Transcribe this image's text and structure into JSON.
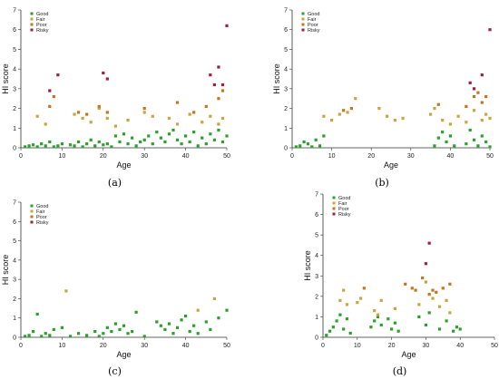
{
  "colors": {
    "Good": "#2ca02c",
    "Fair": "#c8a540",
    "Poor": "#c8741e",
    "Risky": "#a0203a"
  },
  "chart_data": [
    {
      "label": "(a)",
      "type": "scatter",
      "xlabel": "Age",
      "ylabel": "HI score",
      "xlim": [
        0,
        50
      ],
      "ylim": [
        0,
        7
      ],
      "xticks": [
        "0",
        "10",
        "20",
        "30",
        "40",
        "50"
      ],
      "yticks": [
        "0",
        "1",
        "2",
        "3",
        "4",
        "5",
        "6",
        "7"
      ],
      "legend": [
        "Good",
        "Fair",
        "Poor",
        "Risky"
      ],
      "legend_position": "top-left",
      "series": [
        {
          "name": "Good",
          "points": [
            [
              1,
              0.05
            ],
            [
              2,
              0.1
            ],
            [
              3,
              0.15
            ],
            [
              4,
              0.05
            ],
            [
              5,
              0.2
            ],
            [
              6,
              0.1
            ],
            [
              7,
              0.3
            ],
            [
              8,
              0.05
            ],
            [
              9,
              0.1
            ],
            [
              10,
              0.2
            ],
            [
              12,
              0.15
            ],
            [
              13,
              0.1
            ],
            [
              14,
              0.3
            ],
            [
              15,
              0.05
            ],
            [
              16,
              0.2
            ],
            [
              17,
              0.4
            ],
            [
              18,
              0.1
            ],
            [
              19,
              0.3
            ],
            [
              20,
              0.15
            ],
            [
              21,
              0.2
            ],
            [
              22,
              0.05
            ],
            [
              23,
              0.6
            ],
            [
              24,
              0.3
            ],
            [
              25,
              0.7
            ],
            [
              26,
              0.2
            ],
            [
              27,
              0.5
            ],
            [
              28,
              0.1
            ],
            [
              29,
              0.3
            ],
            [
              30,
              0.4
            ],
            [
              31,
              0.6
            ],
            [
              32,
              0.2
            ],
            [
              33,
              0.8
            ],
            [
              34,
              0.5
            ],
            [
              35,
              0.3
            ],
            [
              36,
              0.7
            ],
            [
              37,
              0.9
            ],
            [
              38,
              0.4
            ],
            [
              39,
              0.2
            ],
            [
              40,
              0.6
            ],
            [
              41,
              0.3
            ],
            [
              42,
              0.8
            ],
            [
              43,
              0.1
            ],
            [
              44,
              0.5
            ],
            [
              45,
              0.2
            ],
            [
              46,
              0.7
            ],
            [
              47,
              0.4
            ],
            [
              48,
              0.9
            ],
            [
              49,
              0.3
            ],
            [
              50,
              0.6
            ]
          ]
        },
        {
          "name": "Fair",
          "points": [
            [
              4,
              1.6
            ],
            [
              6,
              1.2
            ],
            [
              13,
              1.7
            ],
            [
              15,
              1.5
            ],
            [
              17,
              1.3
            ],
            [
              19,
              2.0
            ],
            [
              21,
              1.5
            ],
            [
              23,
              1.1
            ],
            [
              26,
              1.4
            ],
            [
              30,
              1.8
            ],
            [
              32,
              1.6
            ],
            [
              36,
              1.5
            ],
            [
              38,
              1.2
            ],
            [
              41,
              1.7
            ],
            [
              44,
              1.3
            ],
            [
              46,
              1.6
            ],
            [
              48,
              1.2
            ],
            [
              49,
              1.5
            ]
          ]
        },
        {
          "name": "Poor",
          "points": [
            [
              7,
              2.1
            ],
            [
              8,
              2.6
            ],
            [
              14,
              1.8
            ],
            [
              16,
              1.7
            ],
            [
              19,
              2.1
            ],
            [
              21,
              1.8
            ],
            [
              30,
              2.0
            ],
            [
              38,
              2.3
            ],
            [
              42,
              1.8
            ],
            [
              45,
              2.1
            ],
            [
              48,
              2.5
            ],
            [
              49,
              2.9
            ]
          ]
        },
        {
          "name": "Risky",
          "points": [
            [
              7,
              2.9
            ],
            [
              9,
              3.7
            ],
            [
              20,
              3.8
            ],
            [
              21,
              3.5
            ],
            [
              46,
              3.7
            ],
            [
              47,
              3.2
            ],
            [
              48,
              4.1
            ],
            [
              49,
              3.2
            ],
            [
              50,
              6.2
            ]
          ]
        }
      ]
    },
    {
      "label": "(b)",
      "type": "scatter",
      "xlabel": "Age",
      "ylabel": "HI score",
      "xlim": [
        0,
        50
      ],
      "ylim": [
        0,
        7
      ],
      "xticks": [
        "0",
        "10",
        "20",
        "30",
        "40",
        "50"
      ],
      "yticks": [
        "0",
        "1",
        "2",
        "3",
        "4",
        "5",
        "6",
        "7"
      ],
      "legend": [
        "Good",
        "Fair",
        "Poor",
        "Risky"
      ],
      "legend_position": "top-left",
      "series": [
        {
          "name": "Good",
          "points": [
            [
              1,
              0.05
            ],
            [
              2,
              0.1
            ],
            [
              3,
              0.3
            ],
            [
              4,
              0.2
            ],
            [
              5,
              0.05
            ],
            [
              6,
              0.4
            ],
            [
              7,
              0.1
            ],
            [
              8,
              0.6
            ],
            [
              36,
              0.1
            ],
            [
              37,
              0.5
            ],
            [
              38,
              0.8
            ],
            [
              39,
              0.3
            ],
            [
              40,
              0.6
            ],
            [
              41,
              0.1
            ],
            [
              44,
              0.2
            ],
            [
              45,
              0.9
            ],
            [
              46,
              0.4
            ],
            [
              47,
              0.1
            ],
            [
              48,
              0.6
            ],
            [
              49,
              0.3
            ],
            [
              50,
              0.05
            ]
          ]
        },
        {
          "name": "Fair",
          "points": [
            [
              8,
              1.6
            ],
            [
              10,
              1.4
            ],
            [
              12,
              1.7
            ],
            [
              14,
              1.8
            ],
            [
              16,
              2.5
            ],
            [
              22,
              2.0
            ],
            [
              24,
              1.6
            ],
            [
              26,
              1.4
            ],
            [
              28,
              1.5
            ],
            [
              35,
              1.7
            ],
            [
              36,
              2.0
            ],
            [
              38,
              1.4
            ],
            [
              40,
              1.2
            ],
            [
              42,
              1.6
            ],
            [
              44,
              1.3
            ],
            [
              46,
              1.9
            ],
            [
              48,
              1.4
            ],
            [
              49,
              1.7
            ],
            [
              50,
              1.5
            ]
          ]
        },
        {
          "name": "Poor",
          "points": [
            [
              13,
              1.9
            ],
            [
              15,
              2.0
            ],
            [
              37,
              2.2
            ],
            [
              44,
              2.1
            ],
            [
              46,
              2.6
            ],
            [
              47,
              2.8
            ],
            [
              48,
              2.3
            ],
            [
              49,
              2.6
            ]
          ]
        },
        {
          "name": "Risky",
          "points": [
            [
              45,
              3.3
            ],
            [
              46,
              3.0
            ],
            [
              48,
              3.7
            ],
            [
              50,
              6.0
            ]
          ]
        }
      ]
    },
    {
      "label": "(c)",
      "type": "scatter",
      "xlabel": "Age",
      "ylabel": "HI score",
      "xlim": [
        0,
        50
      ],
      "ylim": [
        0,
        7
      ],
      "xticks": [
        "0",
        "10",
        "20",
        "30",
        "40",
        "50"
      ],
      "yticks": [
        "0",
        "1",
        "2",
        "3",
        "4",
        "5",
        "6",
        "7"
      ],
      "legend": [
        "Good",
        "Fair",
        "Poor",
        "Risky"
      ],
      "legend_position": "top-left",
      "series": [
        {
          "name": "Good",
          "points": [
            [
              1,
              0.05
            ],
            [
              2,
              0.1
            ],
            [
              3,
              0.3
            ],
            [
              4,
              1.2
            ],
            [
              5,
              0.05
            ],
            [
              6,
              0.2
            ],
            [
              7,
              0.1
            ],
            [
              8,
              0.4
            ],
            [
              10,
              0.5
            ],
            [
              12,
              0.05
            ],
            [
              14,
              0.2
            ],
            [
              16,
              0.1
            ],
            [
              18,
              0.3
            ],
            [
              19,
              0.05
            ],
            [
              20,
              0.2
            ],
            [
              21,
              0.5
            ],
            [
              22,
              0.3
            ],
            [
              23,
              0.7
            ],
            [
              24,
              0.4
            ],
            [
              25,
              0.6
            ],
            [
              26,
              0.2
            ],
            [
              27,
              0.3
            ],
            [
              28,
              1.3
            ],
            [
              30,
              0.05
            ],
            [
              33,
              0.8
            ],
            [
              34,
              0.6
            ],
            [
              35,
              0.4
            ],
            [
              36,
              0.7
            ],
            [
              37,
              0.2
            ],
            [
              38,
              0.5
            ],
            [
              39,
              0.9
            ],
            [
              40,
              1.1
            ],
            [
              41,
              0.3
            ],
            [
              42,
              0.6
            ],
            [
              43,
              0.2
            ],
            [
              45,
              0.8
            ],
            [
              46,
              0.4
            ],
            [
              48,
              1.0
            ],
            [
              50,
              1.4
            ]
          ]
        },
        {
          "name": "Fair",
          "points": [
            [
              11,
              2.4
            ],
            [
              43,
              1.4
            ],
            [
              47,
              2.0
            ]
          ]
        },
        {
          "name": "Poor",
          "points": []
        },
        {
          "name": "Risky",
          "points": []
        }
      ]
    },
    {
      "label": "(d)",
      "type": "scatter",
      "xlabel": "Age",
      "ylabel": "HI score",
      "xlim": [
        0,
        50
      ],
      "ylim": [
        0,
        7
      ],
      "xticks": [
        "0",
        "10",
        "20",
        "30",
        "40",
        "50"
      ],
      "yticks": [
        "0",
        "1",
        "2",
        "3",
        "4",
        "5",
        "6",
        "7"
      ],
      "legend": [
        "Good",
        "Fair",
        "Poor",
        "Risky"
      ],
      "legend_position": "top-left",
      "series": [
        {
          "name": "Good",
          "points": [
            [
              1,
              0.1
            ],
            [
              2,
              0.3
            ],
            [
              3,
              0.5
            ],
            [
              4,
              0.8
            ],
            [
              5,
              1.1
            ],
            [
              6,
              0.4
            ],
            [
              7,
              0.9
            ],
            [
              8,
              0.2
            ],
            [
              14,
              0.5
            ],
            [
              15,
              0.8
            ],
            [
              16,
              1.0
            ],
            [
              17,
              0.6
            ],
            [
              19,
              0.9
            ],
            [
              20,
              0.4
            ],
            [
              21,
              0.7
            ],
            [
              22,
              0.3
            ],
            [
              28,
              1.0
            ],
            [
              30,
              0.6
            ],
            [
              31,
              1.2
            ],
            [
              34,
              0.4
            ],
            [
              36,
              0.8
            ],
            [
              38,
              0.3
            ],
            [
              39,
              0.5
            ],
            [
              40,
              0.4
            ]
          ]
        },
        {
          "name": "Fair",
          "points": [
            [
              5,
              1.8
            ],
            [
              6,
              2.3
            ],
            [
              7,
              1.6
            ],
            [
              10,
              1.7
            ],
            [
              11,
              1.9
            ],
            [
              15,
              1.3
            ],
            [
              16,
              1.1
            ],
            [
              17,
              1.8
            ],
            [
              21,
              1.4
            ],
            [
              28,
              1.6
            ],
            [
              30,
              2.7
            ],
            [
              32,
              1.9
            ],
            [
              34,
              1.5
            ],
            [
              36,
              1.8
            ],
            [
              37,
              1.2
            ]
          ]
        },
        {
          "name": "Poor",
          "points": [
            [
              12,
              2.4
            ],
            [
              24,
              2.6
            ],
            [
              26,
              2.4
            ],
            [
              27,
              2.3
            ],
            [
              29,
              2.9
            ],
            [
              31,
              2.1
            ],
            [
              32,
              2.3
            ],
            [
              33,
              2.2
            ],
            [
              35,
              2.4
            ],
            [
              37,
              2.6
            ]
          ]
        },
        {
          "name": "Risky",
          "points": [
            [
              31,
              4.6
            ],
            [
              30,
              3.6
            ]
          ]
        }
      ]
    }
  ]
}
